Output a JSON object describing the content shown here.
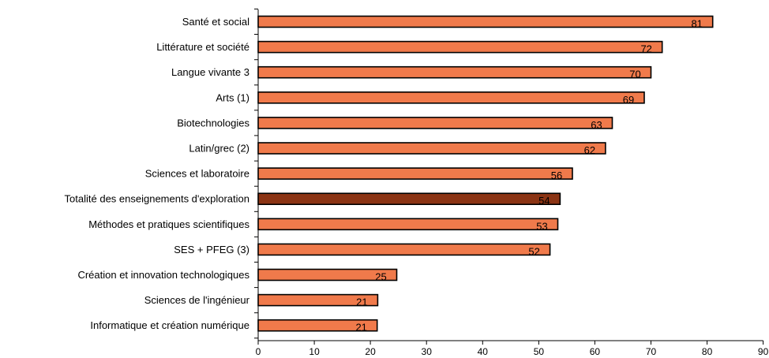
{
  "chart_data": {
    "type": "bar",
    "orientation": "horizontal",
    "categories": [
      "Santé et social",
      "Littérature et société",
      "Langue vivante 3",
      "Arts (1)",
      "Biotechnologies",
      "Latin/grec (2)",
      "Sciences et laboratoire",
      "Totalité des enseignements d'exploration",
      "Méthodes et pratiques scientifiques",
      "SES + PFEG (3)",
      "Création et innovation technologiques",
      "Sciences de l'ingénieur",
      "Informatique et création numérique"
    ],
    "values": [
      81,
      72,
      70,
      69,
      63,
      62,
      56,
      54,
      53,
      52,
      25,
      21,
      21
    ],
    "bar_values": [
      81,
      72,
      70,
      68.8,
      63.1,
      61.9,
      56,
      53.8,
      53.4,
      52,
      24.7,
      21.3,
      21.2
    ],
    "value_labels": [
      "81",
      "72",
      "70",
      "69",
      "63",
      "62",
      "56",
      "54",
      "53",
      "52",
      "25",
      "21",
      "21"
    ],
    "highlight_index": 7,
    "colors": {
      "bar": "#f07a4b",
      "highlight": "#8b3414",
      "outline": "#000000"
    },
    "xlim": [
      0,
      90
    ],
    "xticks": [
      "0",
      "10",
      "20",
      "30",
      "40",
      "50",
      "60",
      "70",
      "80",
      "90"
    ],
    "grid": false
  }
}
